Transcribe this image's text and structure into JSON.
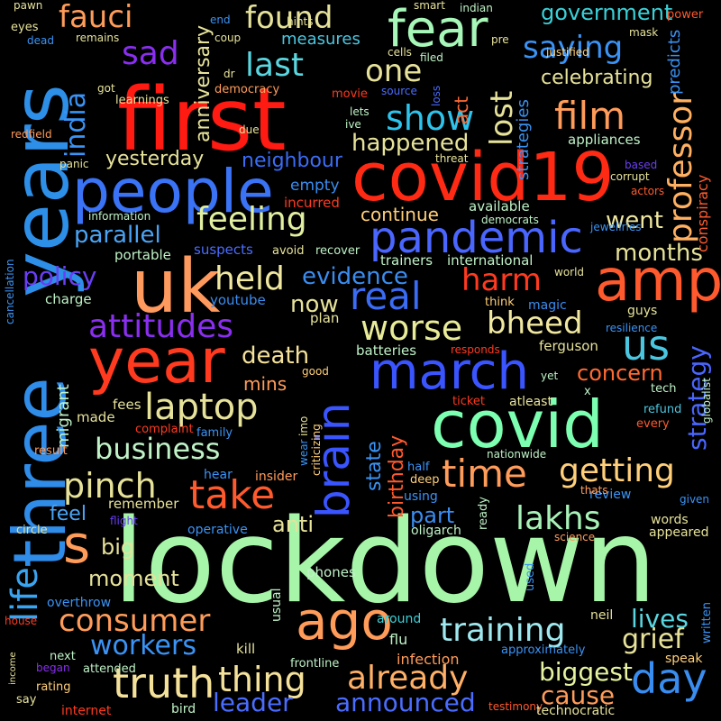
{
  "words": [
    {
      "text": "lockdown",
      "color": "#a6f5a8"
    },
    {
      "text": "first",
      "color": "#ff1a12"
    },
    {
      "text": "years",
      "color": "#2e8fe8"
    },
    {
      "text": "three",
      "color": "#2f8ce8"
    },
    {
      "text": "covid19",
      "color": "#ff2a14"
    },
    {
      "text": "covid",
      "color": "#7cffb0"
    },
    {
      "text": "uk",
      "color": "#ff9a5e"
    },
    {
      "text": "amp",
      "color": "#ff5a2d"
    },
    {
      "text": "people",
      "color": "#3a73f5"
    },
    {
      "text": "year",
      "color": "#ff3a1f"
    },
    {
      "text": "march",
      "color": "#3a55ff"
    },
    {
      "text": "fear",
      "color": "#a7f7b9"
    },
    {
      "text": "pandemic",
      "color": "#4a66ff"
    },
    {
      "text": "brain",
      "color": "#3a55ff"
    },
    {
      "text": "ago",
      "color": "#ff9c5a"
    },
    {
      "text": "truth",
      "color": "#f4e19a"
    },
    {
      "text": "s",
      "color": "#ff9c5a"
    },
    {
      "text": "day",
      "color": "#3a8df0"
    },
    {
      "text": "real",
      "color": "#3a6cf5"
    },
    {
      "text": "us",
      "color": "#4bc6e0"
    },
    {
      "text": "take",
      "color": "#ff5a2d"
    },
    {
      "text": "time",
      "color": "#ff9c5a"
    },
    {
      "text": "film",
      "color": "#ff9c5a"
    },
    {
      "text": "life",
      "color": "#3aa4f0"
    },
    {
      "text": "show",
      "color": "#2ec3ec"
    },
    {
      "text": "laptop",
      "color": "#e6e29a"
    },
    {
      "text": "pinch",
      "color": "#e6e29a"
    },
    {
      "text": "worse",
      "color": "#e8ec98"
    },
    {
      "text": "feeling",
      "color": "#e0f0a0"
    },
    {
      "text": "held",
      "color": "#f0e8a0"
    },
    {
      "text": "already",
      "color": "#ffb066"
    },
    {
      "text": "thing",
      "color": "#f4e19a"
    },
    {
      "text": "getting",
      "color": "#ffcf7a"
    },
    {
      "text": "lakhs",
      "color": "#a8f2b8"
    },
    {
      "text": "training",
      "color": "#9fe8ef"
    },
    {
      "text": "consumer",
      "color": "#ff9c5a"
    },
    {
      "text": "business",
      "color": "#bff2c7"
    },
    {
      "text": "attitudes",
      "color": "#8a2ef0"
    },
    {
      "text": "professor",
      "color": "#ffb060"
    },
    {
      "text": "found",
      "color": "#e6e29a"
    },
    {
      "text": "saying",
      "color": "#3a93f5"
    },
    {
      "text": "last",
      "color": "#5ad6e0"
    },
    {
      "text": "one",
      "color": "#e6e29a"
    },
    {
      "text": "lost",
      "color": "#e6e29a"
    },
    {
      "text": "sad",
      "color": "#8a2ef0"
    },
    {
      "text": "fauci",
      "color": "#ff9c5a"
    },
    {
      "text": "india",
      "color": "#3a93f5"
    },
    {
      "text": "harm",
      "color": "#ff3a1f"
    },
    {
      "text": "bheed",
      "color": "#f0e8a0"
    },
    {
      "text": "workers",
      "color": "#3a93f5"
    },
    {
      "text": "leader",
      "color": "#4a6cff"
    },
    {
      "text": "announced",
      "color": "#4a6cff"
    },
    {
      "text": "biggest",
      "color": "#e6f2a0"
    },
    {
      "text": "cause",
      "color": "#ff9c5a"
    },
    {
      "text": "grief",
      "color": "#e6e29a"
    },
    {
      "text": "lives",
      "color": "#5ad6e0"
    },
    {
      "text": "strategy",
      "color": "#4a66ff"
    },
    {
      "text": "concern",
      "color": "#ff6a32"
    },
    {
      "text": "months",
      "color": "#e6e29a"
    },
    {
      "text": "went",
      "color": "#f0e8a0"
    },
    {
      "text": "happened",
      "color": "#e6e29a"
    },
    {
      "text": "government",
      "color": "#3ad0d8"
    },
    {
      "text": "celebrating",
      "color": "#e6e29a"
    },
    {
      "text": "evidence",
      "color": "#3a8df0"
    },
    {
      "text": "policy",
      "color": "#6a3ef5"
    },
    {
      "text": "parallel",
      "color": "#4aa4f5"
    },
    {
      "text": "anniversary",
      "color": "#e6e29a"
    },
    {
      "text": "neighbour",
      "color": "#3a6cf5"
    },
    {
      "text": "yesterday",
      "color": "#e6e29a"
    },
    {
      "text": "continue",
      "color": "#ffcf7a"
    },
    {
      "text": "now",
      "color": "#e6e29a"
    },
    {
      "text": "death",
      "color": "#f4e19a"
    },
    {
      "text": "mins",
      "color": "#ff9c5a"
    },
    {
      "text": "birthday",
      "color": "#ff5a2d"
    },
    {
      "text": "state",
      "color": "#3a93f5"
    },
    {
      "text": "part",
      "color": "#3a8df0"
    },
    {
      "text": "anti",
      "color": "#e6e29a"
    },
    {
      "text": "moment",
      "color": "#e6e29a"
    },
    {
      "text": "big",
      "color": "#e6e29a"
    },
    {
      "text": "feel",
      "color": "#4aa4f5"
    },
    {
      "text": "migrant",
      "color": "#bff2c7"
    },
    {
      "text": "remember",
      "color": "#e6e29a"
    },
    {
      "text": "empty",
      "color": "#3a8df0"
    },
    {
      "text": "measures",
      "color": "#4bc6e0"
    },
    {
      "text": "strategies",
      "color": "#3a93f5"
    },
    {
      "text": "act",
      "color": "#ff6a32"
    },
    {
      "text": "predicts",
      "color": "#3a93f5"
    },
    {
      "text": "conspiracy",
      "color": "#ff5a2d"
    },
    {
      "text": "available",
      "color": "#bff2c7"
    },
    {
      "text": "international",
      "color": "#bff2c7"
    },
    {
      "text": "appliances",
      "color": "#bff2c7"
    },
    {
      "text": "trainers",
      "color": "#bff2c7"
    },
    {
      "text": "incurred",
      "color": "#ff3a1f"
    },
    {
      "text": "suspects",
      "color": "#4a6cff"
    },
    {
      "text": "portable",
      "color": "#bff2c7"
    },
    {
      "text": "charge",
      "color": "#bff2c7"
    },
    {
      "text": "youtube",
      "color": "#3a8df0"
    },
    {
      "text": "plan",
      "color": "#e6e29a"
    },
    {
      "text": "batteries",
      "color": "#bff2c7"
    },
    {
      "text": "ferguson",
      "color": "#e6e29a"
    },
    {
      "text": "tech",
      "color": "#bff2c7"
    },
    {
      "text": "magic",
      "color": "#3a8df0"
    },
    {
      "text": "guys",
      "color": "#e6e29a"
    },
    {
      "text": "resilience",
      "color": "#3a93f5"
    },
    {
      "text": "responds",
      "color": "#ff3a1f"
    },
    {
      "text": "think",
      "color": "#ffcf7a"
    },
    {
      "text": "fees",
      "color": "#e6e29a"
    },
    {
      "text": "made",
      "color": "#e6e29a"
    },
    {
      "text": "complaint",
      "color": "#ff3a1f"
    },
    {
      "text": "family",
      "color": "#3a93f5"
    },
    {
      "text": "result",
      "color": "#ff9c5a"
    },
    {
      "text": "hear",
      "color": "#3a93f5"
    },
    {
      "text": "insider",
      "color": "#ff9c5a"
    },
    {
      "text": "circle",
      "color": "#e6e29a"
    },
    {
      "text": "flight",
      "color": "#6a3ef5"
    },
    {
      "text": "operative",
      "color": "#3a93f5"
    },
    {
      "text": "phones",
      "color": "#bff2c7"
    },
    {
      "text": "usual",
      "color": "#bff2c7"
    },
    {
      "text": "overthrow",
      "color": "#3a93f5"
    },
    {
      "text": "house",
      "color": "#ff3a1f"
    },
    {
      "text": "next",
      "color": "#bff2c7"
    },
    {
      "text": "attended",
      "color": "#bff2c7"
    },
    {
      "text": "kill",
      "color": "#e6e29a"
    },
    {
      "text": "frontline",
      "color": "#bff2c7"
    },
    {
      "text": "infection",
      "color": "#ff9c5a"
    },
    {
      "text": "bird",
      "color": "#bff2c7"
    },
    {
      "text": "internet",
      "color": "#ff3a1f"
    },
    {
      "text": "say",
      "color": "#e6e29a"
    },
    {
      "text": "rating",
      "color": "#ffcf7a"
    },
    {
      "text": "income",
      "color": "#e6e29a"
    },
    {
      "text": "began",
      "color": "#8a2ef0"
    },
    {
      "text": "flu",
      "color": "#bff2c7"
    },
    {
      "text": "around",
      "color": "#3ad0d8"
    },
    {
      "text": "using",
      "color": "#3a93f5"
    },
    {
      "text": "deep",
      "color": "#ffcf7a"
    },
    {
      "text": "half",
      "color": "#3a93f5"
    },
    {
      "text": "oligarch",
      "color": "#bff2c7"
    },
    {
      "text": "ready",
      "color": "#bff2c7"
    },
    {
      "text": "used",
      "color": "#3a93f5"
    },
    {
      "text": "science",
      "color": "#ff9c5a"
    },
    {
      "text": "neil",
      "color": "#e6e29a"
    },
    {
      "text": "review",
      "color": "#3a93f5"
    },
    {
      "text": "words",
      "color": "#e6e29a"
    },
    {
      "text": "appeared",
      "color": "#e6e29a"
    },
    {
      "text": "approximately",
      "color": "#3a93f5"
    },
    {
      "text": "written",
      "color": "#3a93f5"
    },
    {
      "text": "speak",
      "color": "#ffcf7a"
    },
    {
      "text": "given",
      "color": "#3a93f5"
    },
    {
      "text": "testimony",
      "color": "#ff5a2d"
    },
    {
      "text": "technocratic",
      "color": "#e6e29a"
    },
    {
      "text": "nationwide",
      "color": "#bff2c7"
    },
    {
      "text": "thats",
      "color": "#ff9c5a"
    },
    {
      "text": "ticket",
      "color": "#ff3a1f"
    },
    {
      "text": "atleast",
      "color": "#e6e29a"
    },
    {
      "text": "refund",
      "color": "#4bc6e0"
    },
    {
      "text": "every",
      "color": "#ff5a2d"
    },
    {
      "text": "globalist",
      "color": "#bff2c7"
    },
    {
      "text": "x",
      "color": "#bff2c7"
    },
    {
      "text": "yet",
      "color": "#bff2c7"
    },
    {
      "text": "good",
      "color": "#ffcf7a"
    },
    {
      "text": "wear",
      "color": "#3a93f5"
    },
    {
      "text": "imo",
      "color": "#e6e29a"
    },
    {
      "text": "criticizing",
      "color": "#ffcf7a"
    },
    {
      "text": "avoid",
      "color": "#e6e29a"
    },
    {
      "text": "recover",
      "color": "#bff2c7"
    },
    {
      "text": "jewellries",
      "color": "#3a93f5"
    },
    {
      "text": "world",
      "color": "#e6e29a"
    },
    {
      "text": "democrats",
      "color": "#bff2c7"
    },
    {
      "text": "actors",
      "color": "#ff5a2d"
    },
    {
      "text": "corrupt",
      "color": "#e6e29a"
    },
    {
      "text": "based",
      "color": "#6a3ef5"
    },
    {
      "text": "threat",
      "color": "#e6e29a"
    },
    {
      "text": "ive",
      "color": "#bff2c7"
    },
    {
      "text": "lets",
      "color": "#bff2c7"
    },
    {
      "text": "movie",
      "color": "#ff3a1f"
    },
    {
      "text": "source",
      "color": "#4a6cff"
    },
    {
      "text": "loss",
      "color": "#4a6cff"
    },
    {
      "text": "democracy",
      "color": "#ff9c5a"
    },
    {
      "text": "learnings",
      "color": "#e6e29a"
    },
    {
      "text": "got",
      "color": "#e6e29a"
    },
    {
      "text": "dr",
      "color": "#e6e29a"
    },
    {
      "text": "due",
      "color": "#e6e29a"
    },
    {
      "text": "redfield",
      "color": "#ff9c5a"
    },
    {
      "text": "panic",
      "color": "#e6e29a"
    },
    {
      "text": "information",
      "color": "#bff2c7"
    },
    {
      "text": "cancellation",
      "color": "#3a93f5"
    },
    {
      "text": "eyes",
      "color": "#e6e29a"
    },
    {
      "text": "dead",
      "color": "#3a93f5"
    },
    {
      "text": "remains",
      "color": "#e6e29a"
    },
    {
      "text": "pawn",
      "color": "#e6e29a"
    },
    {
      "text": "end",
      "color": "#3a93f5"
    },
    {
      "text": "coup",
      "color": "#e6e29a"
    },
    {
      "text": "hints",
      "color": "#e6e29a"
    },
    {
      "text": "smart",
      "color": "#e6e29a"
    },
    {
      "text": "indian",
      "color": "#bff2c7"
    },
    {
      "text": "cells",
      "color": "#e6e29a"
    },
    {
      "text": "filed",
      "color": "#bff2c7"
    },
    {
      "text": "pre",
      "color": "#e6e29a"
    },
    {
      "text": "justified",
      "color": "#ffcf7a"
    },
    {
      "text": "mask",
      "color": "#e6e29a"
    },
    {
      "text": "power",
      "color": "#ff5a2d"
    }
  ]
}
